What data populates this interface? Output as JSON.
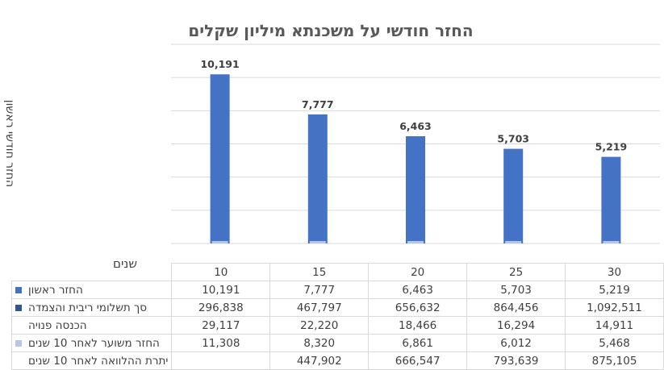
{
  "chart_data": {
    "type": "bar",
    "title": "החזר חודשי על משכנתא מיליון שקלים",
    "ylabel": "החזר חודשי ראשון",
    "xlabel": "שנים",
    "categories": [
      "10",
      "15",
      "20",
      "25",
      "30"
    ],
    "ylim": [
      0,
      12000
    ],
    "grid": true,
    "series": [
      {
        "name": "החזר ראשון",
        "values": [
          10191,
          7777,
          6463,
          5703,
          5219
        ],
        "labels": [
          "10,191",
          "7,777",
          "6,463",
          "5,703",
          "5,219"
        ],
        "color": "#4472c4",
        "plotted": true
      },
      {
        "name": "סך תשלומי ריבית והצמדה",
        "values": [
          296838,
          467797,
          656632,
          864456,
          1092511
        ],
        "labels": [
          "296,838",
          "467,797",
          "656,632",
          "864,456",
          "1,092,511"
        ],
        "color": "#2f5597",
        "plotted": false
      },
      {
        "name": "הכנסה פנויה",
        "values": [
          29117,
          22220,
          18466,
          16294,
          14911
        ],
        "labels": [
          "29,117",
          "22,220",
          "18,466",
          "16,294",
          "14,911"
        ],
        "color": null,
        "plotted": false
      },
      {
        "name": "החזר משוער לאחר 10 שנים",
        "values": [
          11308,
          8320,
          6861,
          6012,
          5468
        ],
        "labels": [
          "11,308",
          "8,320",
          "6,861",
          "6,012",
          "5,468"
        ],
        "color": "#b4c7e7",
        "plotted": true
      },
      {
        "name": "יתרת ההלוואה לאחר 10 שנים",
        "values": [
          null,
          447902,
          666547,
          793639,
          875105
        ],
        "labels": [
          "",
          "447,902",
          "666,547",
          "793,639",
          "875,105"
        ],
        "color": null,
        "plotted": false
      }
    ]
  }
}
